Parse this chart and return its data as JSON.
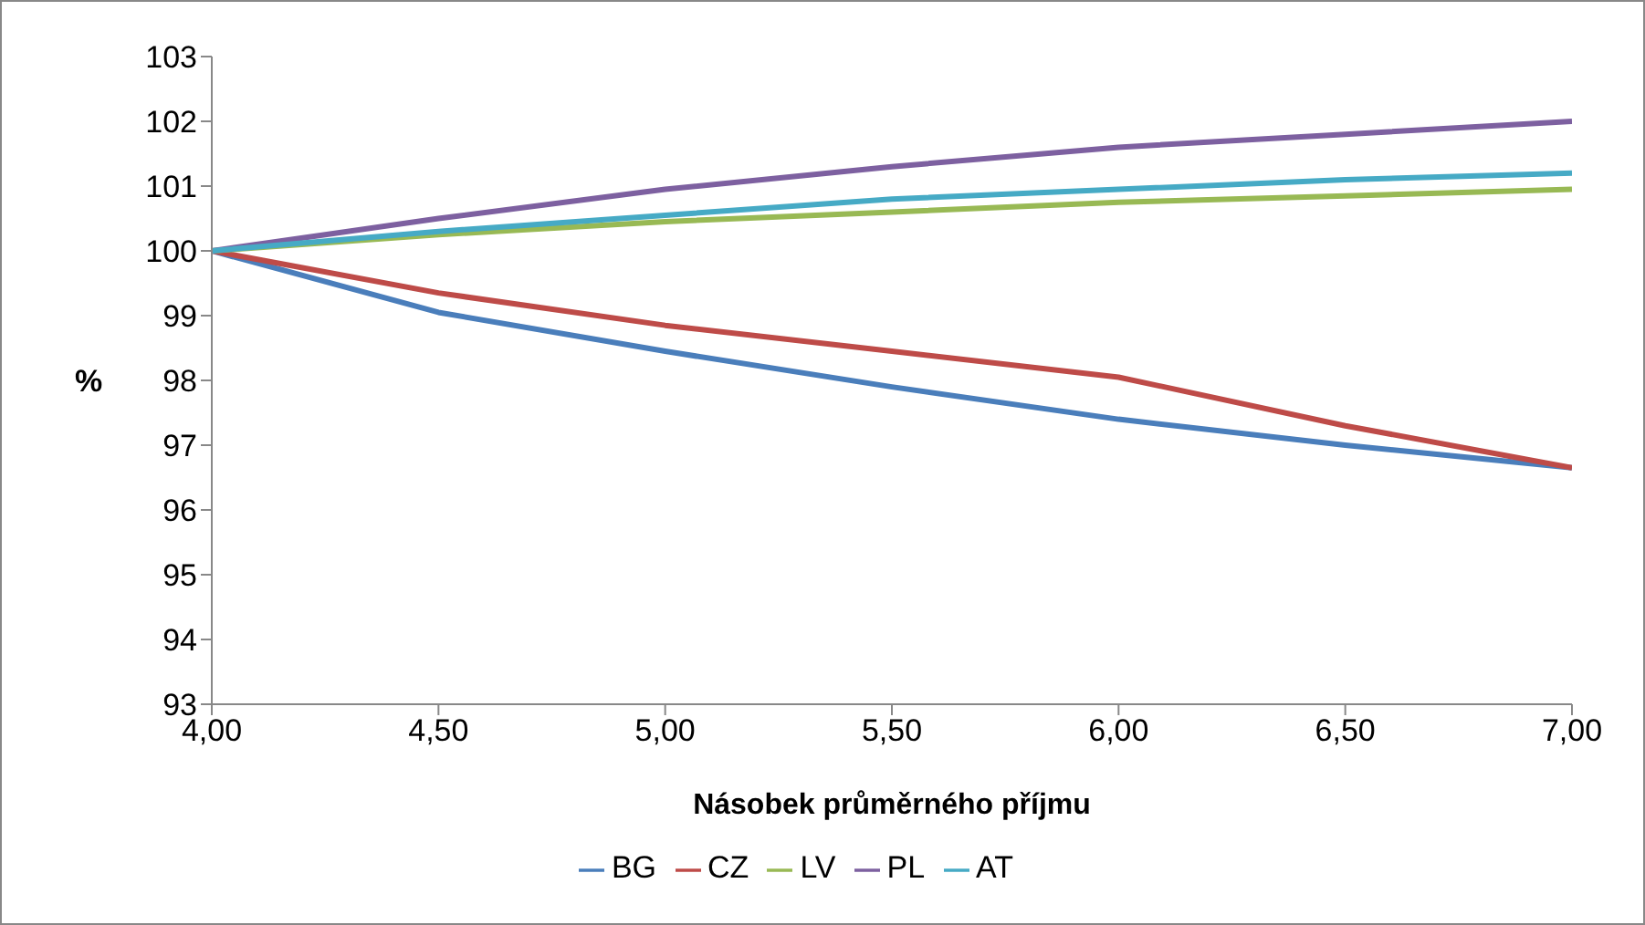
{
  "chart_data": {
    "type": "line",
    "xlabel": "Násobek průměrného příjmu",
    "ylabel": "%",
    "x": [
      4,
      4.5,
      5,
      5.5,
      6,
      6.5,
      7
    ],
    "series": [
      {
        "name": "BG",
        "color": "#4a7ebb",
        "values": [
          100,
          99.05,
          98.45,
          97.9,
          97.4,
          97.0,
          96.65
        ]
      },
      {
        "name": "CZ",
        "color": "#be4b48",
        "values": [
          100,
          99.35,
          98.85,
          98.45,
          98.05,
          97.3,
          96.65
        ]
      },
      {
        "name": "LV",
        "color": "#98b954",
        "values": [
          100,
          100.25,
          100.45,
          100.6,
          100.75,
          100.85,
          100.95
        ]
      },
      {
        "name": "PL",
        "color": "#7d60a0",
        "values": [
          100,
          100.5,
          100.95,
          101.3,
          101.6,
          101.8,
          102.0
        ]
      },
      {
        "name": "AT",
        "color": "#46aac5",
        "values": [
          100,
          100.3,
          100.55,
          100.8,
          100.95,
          101.1,
          101.2
        ]
      }
    ],
    "xlim": [
      4,
      7
    ],
    "xticks": [
      {
        "value": 4,
        "label": "4,00"
      },
      {
        "value": 4.5,
        "label": "4,50"
      },
      {
        "value": 5,
        "label": "5,00"
      },
      {
        "value": 5.5,
        "label": "5,50"
      },
      {
        "value": 6,
        "label": "6,00"
      },
      {
        "value": 6.5,
        "label": "6,50"
      },
      {
        "value": 7,
        "label": "7,00"
      }
    ],
    "ylim": [
      93,
      103
    ],
    "yticks": [
      93,
      94,
      95,
      96,
      97,
      98,
      99,
      100,
      101,
      102,
      103
    ],
    "grid": false,
    "legend": "bottom",
    "marker": "none",
    "line_style": "solid"
  }
}
